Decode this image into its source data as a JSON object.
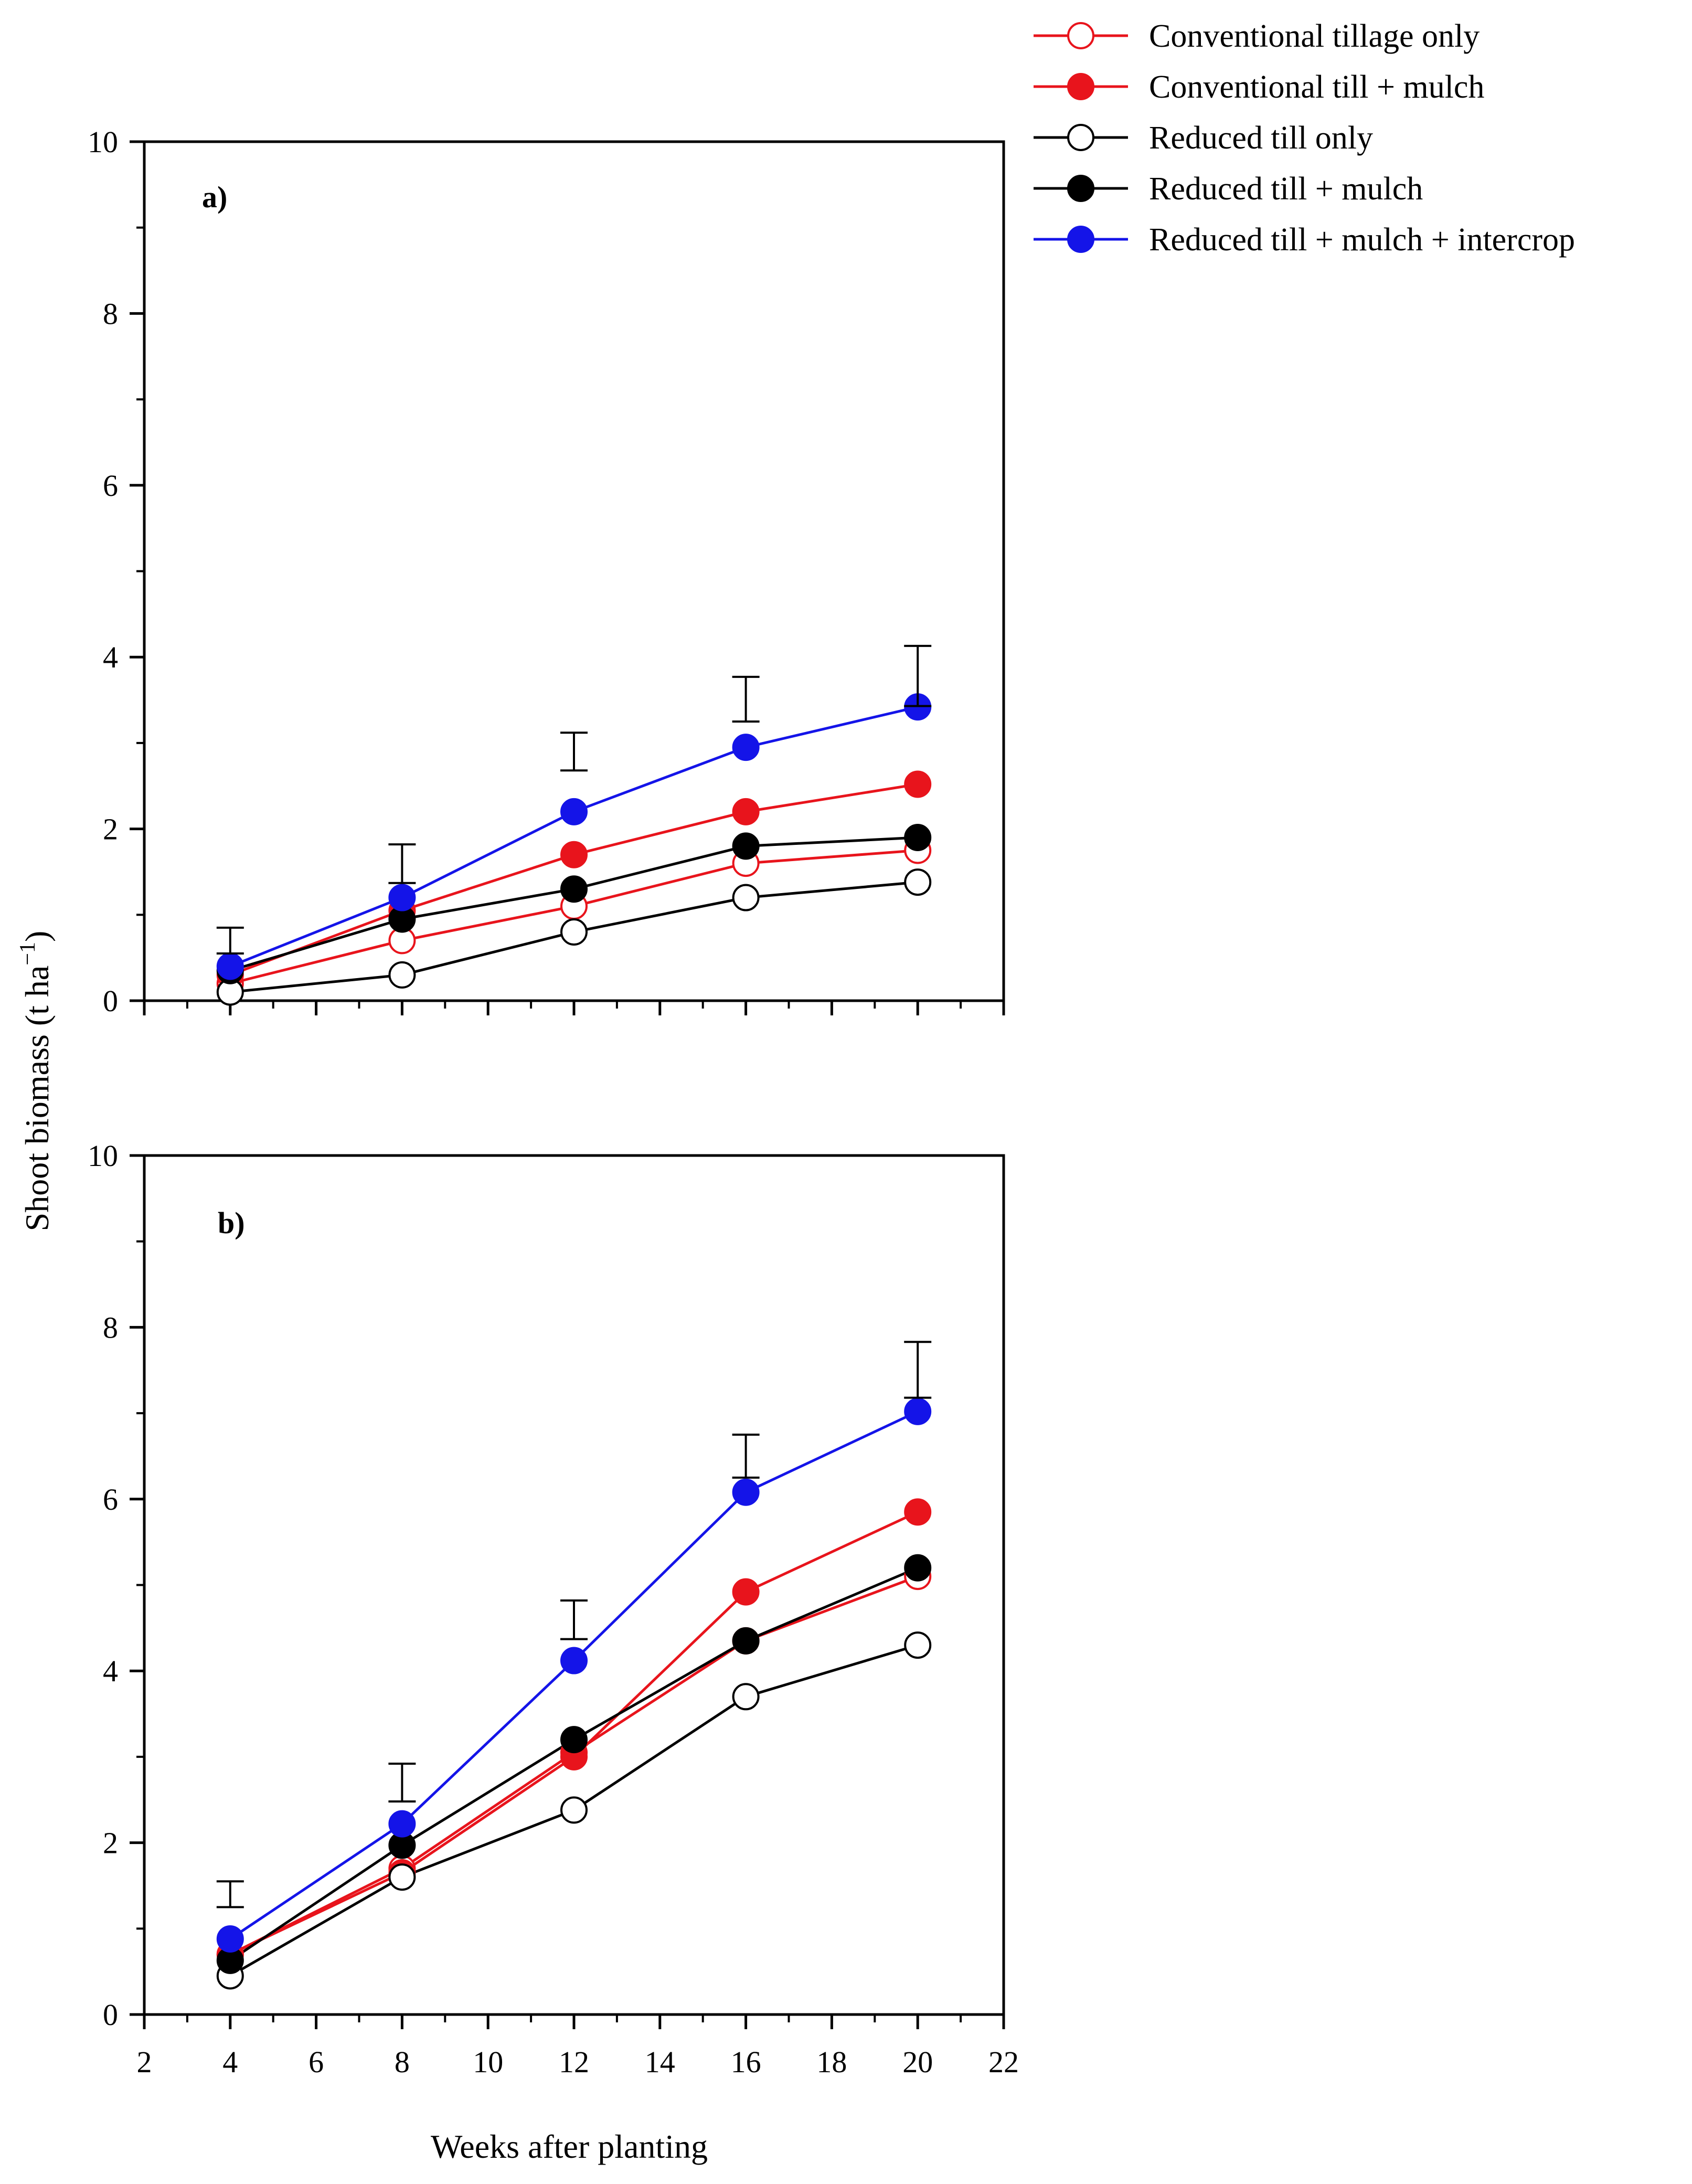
{
  "chart_data": {
    "type": "line",
    "ylabel_main": "Shoot biomass (t ha",
    "ylabel_sup": "−1",
    "ylabel_close": ")",
    "xlabel": "Weeks after planting",
    "xlim": [
      2,
      22
    ],
    "xticks": [
      2,
      4,
      6,
      8,
      10,
      12,
      14,
      16,
      18,
      20,
      22
    ],
    "ylim": [
      0,
      10
    ],
    "yticks": [
      0,
      2,
      4,
      6,
      8,
      10
    ],
    "legend": [
      {
        "name": "Conventional tillage only",
        "color": "#e8141c",
        "filled": false
      },
      {
        "name": "Conventional till + mulch",
        "color": "#e8141c",
        "filled": true
      },
      {
        "name": "Reduced till only",
        "color": "#000000",
        "filled": false
      },
      {
        "name": "Reduced till + mulch",
        "color": "#000000",
        "filled": true
      },
      {
        "name": "Reduced till + mulch + intercrop",
        "color": "#1414e8",
        "filled": true
      }
    ],
    "panels": [
      {
        "label": "a)",
        "x": [
          4,
          8,
          12,
          16,
          20
        ],
        "series": [
          {
            "name": "Conventional tillage only",
            "values": [
              0.2,
              0.7,
              1.1,
              1.6,
              1.75
            ]
          },
          {
            "name": "Conventional till + mulch",
            "values": [
              0.3,
              1.05,
              1.7,
              2.2,
              2.52
            ]
          },
          {
            "name": "Reduced till only",
            "values": [
              0.1,
              0.3,
              0.8,
              1.2,
              1.38
            ]
          },
          {
            "name": "Reduced till + mulch",
            "values": [
              0.35,
              0.95,
              1.3,
              1.8,
              1.9
            ]
          },
          {
            "name": "Reduced till + mulch + intercrop",
            "values": [
              0.4,
              1.2,
              2.2,
              2.95,
              3.42
            ]
          }
        ],
        "error_bars": [
          {
            "x": 4,
            "low": 0.55,
            "high": 0.85
          },
          {
            "x": 8,
            "low": 1.37,
            "high": 1.82
          },
          {
            "x": 12,
            "low": 2.68,
            "high": 3.12
          },
          {
            "x": 16,
            "low": 3.25,
            "high": 3.77
          },
          {
            "x": 20,
            "low": 3.43,
            "high": 4.13
          }
        ]
      },
      {
        "label": "b)",
        "x": [
          4,
          8,
          12,
          16,
          20
        ],
        "series": [
          {
            "name": "Conventional tillage only",
            "values": [
              0.7,
              1.7,
              3.05,
              4.35,
              5.1
            ]
          },
          {
            "name": "Conventional till + mulch",
            "values": [
              0.7,
              1.65,
              3.0,
              4.92,
              5.85
            ]
          },
          {
            "name": "Reduced till only",
            "values": [
              0.45,
              1.6,
              2.38,
              3.7,
              4.3
            ]
          },
          {
            "name": "Reduced till + mulch",
            "values": [
              0.63,
              1.97,
              3.2,
              4.35,
              5.2
            ]
          },
          {
            "name": "Reduced till + mulch + intercrop",
            "values": [
              0.88,
              2.22,
              4.12,
              6.08,
              7.02
            ]
          }
        ],
        "error_bars": [
          {
            "x": 4,
            "low": 1.25,
            "high": 1.55
          },
          {
            "x": 8,
            "low": 2.48,
            "high": 2.92
          },
          {
            "x": 12,
            "low": 4.37,
            "high": 4.82
          },
          {
            "x": 16,
            "low": 6.25,
            "high": 6.75
          },
          {
            "x": 20,
            "low": 7.18,
            "high": 7.83
          }
        ]
      }
    ]
  }
}
